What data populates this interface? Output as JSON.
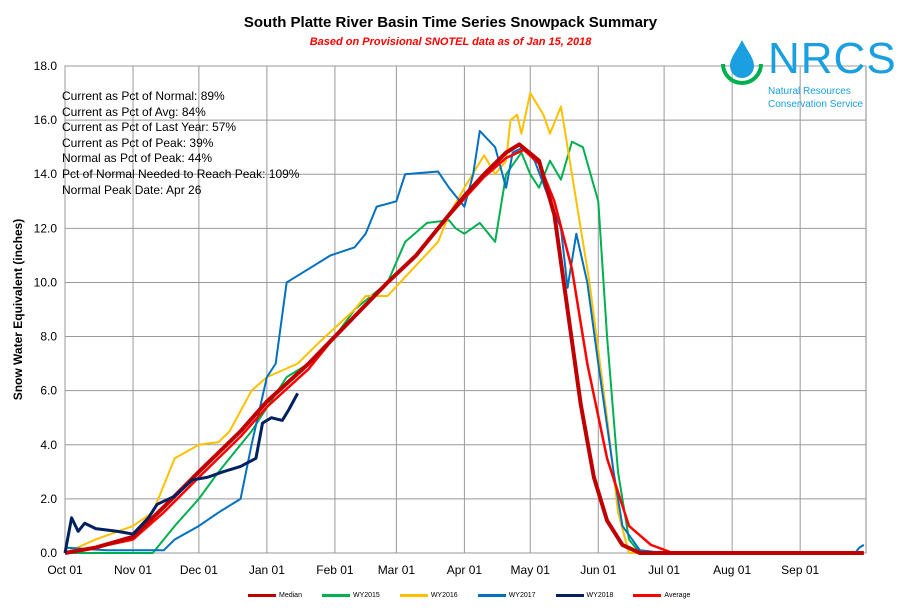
{
  "chart_data": {
    "type": "line",
    "title": "South Platte River Basin Time Series Snowpack Summary",
    "subtitle": "Based on Provisional SNOTEL data as of Jan 15, 2018",
    "ylabel": "Snow Water Equivalent (inches)",
    "xlabel": "",
    "ylim": [
      0,
      18
    ],
    "yticks": [
      "0.0",
      "2.0",
      "4.0",
      "6.0",
      "8.0",
      "10.0",
      "12.0",
      "14.0",
      "16.0",
      "18.0"
    ],
    "xticks": [
      "Oct 01",
      "Nov 01",
      "Dec 01",
      "Jan 01",
      "Feb 01",
      "Mar 01",
      "Apr 01",
      "May 01",
      "Jun 01",
      "Jul 01",
      "Aug 01",
      "Sep 01"
    ],
    "grid": true,
    "legend_position": "bottom",
    "stats": [
      "Current  as Pct of Normal: 89%",
      "Current  as Pct of Avg: 84%",
      "Current  as Pct of Last Year: 57%",
      "Current  as Pct of Peak: 39%",
      "Normal  as Pct of Peak: 44%",
      "Pct of Normal Needed  to Reach Peak: 109%",
      "Normal  Peak Date: Apr 26"
    ],
    "series": [
      {
        "name": "Median",
        "color": "#c00000",
        "width": 4,
        "points": [
          [
            "Oct 01",
            0
          ],
          [
            "Oct 15",
            0.2
          ],
          [
            "Nov 01",
            0.6
          ],
          [
            "Nov 15",
            1.7
          ],
          [
            "Dec 01",
            3
          ],
          [
            "Dec 20",
            4.5
          ],
          [
            "Jan 01",
            5.6
          ],
          [
            "Jan 20",
            7
          ],
          [
            "Feb 01",
            8
          ],
          [
            "Feb 25",
            10
          ],
          [
            "Mar 10",
            11
          ],
          [
            "Mar 20",
            12
          ],
          [
            "Apr 01",
            13.2
          ],
          [
            "Apr 10",
            14
          ],
          [
            "Apr 20",
            14.8
          ],
          [
            "Apr 26",
            15.1
          ],
          [
            "May 05",
            14.5
          ],
          [
            "May 12",
            12.5
          ],
          [
            "May 18",
            9
          ],
          [
            "May 24",
            5.5
          ],
          [
            "May 30",
            2.8
          ],
          [
            "Jun 05",
            1.2
          ],
          [
            "Jun 12",
            0.3
          ],
          [
            "Jun 20",
            0
          ],
          [
            "Sep 30",
            0
          ]
        ]
      },
      {
        "name": "WY2015",
        "color": "#00b050",
        "width": 2,
        "points": [
          [
            "Oct 01",
            0
          ],
          [
            "Nov 10",
            0
          ],
          [
            "Nov 20",
            1
          ],
          [
            "Dec 01",
            2
          ],
          [
            "Dec 10",
            3
          ],
          [
            "Dec 25",
            4.5
          ],
          [
            "Jan 10",
            6.5
          ],
          [
            "Jan 20",
            7
          ],
          [
            "Feb 01",
            8
          ],
          [
            "Feb 10",
            9
          ],
          [
            "Feb 25",
            10
          ],
          [
            "Mar 05",
            11.5
          ],
          [
            "Mar 15",
            12.2
          ],
          [
            "Mar 25",
            12.3
          ],
          [
            "Mar 28",
            12
          ],
          [
            "Apr 01",
            11.8
          ],
          [
            "Apr 08",
            12.2
          ],
          [
            "Apr 15",
            11.5
          ],
          [
            "Apr 20",
            14
          ],
          [
            "Apr 27",
            14.8
          ],
          [
            "May 01",
            14
          ],
          [
            "May 05",
            13.5
          ],
          [
            "May 10",
            14.5
          ],
          [
            "May 15",
            13.8
          ],
          [
            "May 20",
            15.2
          ],
          [
            "May 25",
            15
          ],
          [
            "Jun 01",
            13
          ],
          [
            "Jun 05",
            8
          ],
          [
            "Jun 10",
            3
          ],
          [
            "Jun 15",
            0.5
          ],
          [
            "Jun 20",
            0
          ],
          [
            "Sep 30",
            0
          ]
        ]
      },
      {
        "name": "WY2016",
        "color": "#ffc000",
        "width": 2,
        "points": [
          [
            "Oct 01",
            0
          ],
          [
            "Oct 15",
            0.5
          ],
          [
            "Nov 01",
            1
          ],
          [
            "Nov 10",
            1.5
          ],
          [
            "Nov 15",
            2.5
          ],
          [
            "Nov 20",
            3.5
          ],
          [
            "Dec 01",
            4
          ],
          [
            "Dec 10",
            4.1
          ],
          [
            "Dec 15",
            4.5
          ],
          [
            "Dec 25",
            6
          ],
          [
            "Jan 01",
            6.5
          ],
          [
            "Jan 15",
            7
          ],
          [
            "Jan 25",
            7.8
          ],
          [
            "Feb 10",
            9
          ],
          [
            "Feb 15",
            9.5
          ],
          [
            "Feb 25",
            9.5
          ],
          [
            "Mar 05",
            10.2
          ],
          [
            "Mar 20",
            11.5
          ],
          [
            "Mar 25",
            12.5
          ],
          [
            "Apr 01",
            13.5
          ],
          [
            "Apr 10",
            14.7
          ],
          [
            "Apr 15",
            14
          ],
          [
            "Apr 20",
            14.5
          ],
          [
            "Apr 22",
            16
          ],
          [
            "Apr 25",
            16.2
          ],
          [
            "Apr 27",
            15.5
          ],
          [
            "May 01",
            17
          ],
          [
            "May 07",
            16.2
          ],
          [
            "May 10",
            15.5
          ],
          [
            "May 15",
            16.5
          ],
          [
            "May 20",
            14
          ],
          [
            "May 28",
            10
          ],
          [
            "Jun 05",
            5
          ],
          [
            "Jun 10",
            1.5
          ],
          [
            "Jun 15",
            0
          ],
          [
            "Sep 30",
            0
          ]
        ]
      },
      {
        "name": "WY2017",
        "color": "#0070c0",
        "width": 2,
        "points": [
          [
            "Oct 01",
            0.2
          ],
          [
            "Oct 20",
            0.1
          ],
          [
            "Nov 15",
            0.1
          ],
          [
            "Nov 20",
            0.5
          ],
          [
            "Dec 01",
            1
          ],
          [
            "Dec 10",
            1.5
          ],
          [
            "Dec 20",
            2
          ],
          [
            "Dec 25",
            4
          ],
          [
            "Jan 01",
            6.5
          ],
          [
            "Jan 05",
            7
          ],
          [
            "Jan 10",
            10
          ],
          [
            "Jan 20",
            10.5
          ],
          [
            "Jan 30",
            11
          ],
          [
            "Feb 10",
            11.3
          ],
          [
            "Feb 15",
            11.8
          ],
          [
            "Feb 20",
            12.8
          ],
          [
            "Mar 01",
            13
          ],
          [
            "Mar 05",
            14
          ],
          [
            "Mar 20",
            14.1
          ],
          [
            "Mar 25",
            13.5
          ],
          [
            "Apr 01",
            12.8
          ],
          [
            "Apr 05",
            14
          ],
          [
            "Apr 08",
            15.6
          ],
          [
            "Apr 15",
            15
          ],
          [
            "Apr 20",
            13.5
          ],
          [
            "Apr 23",
            14.8
          ],
          [
            "Apr 28",
            15
          ],
          [
            "May 03",
            14.5
          ],
          [
            "May 10",
            13
          ],
          [
            "May 15",
            12
          ],
          [
            "May 18",
            9.8
          ],
          [
            "May 22",
            11.8
          ],
          [
            "May 27",
            10
          ],
          [
            "Jun 01",
            7
          ],
          [
            "Jun 08",
            3
          ],
          [
            "Jun 12",
            1
          ],
          [
            "Jun 20",
            0.1
          ],
          [
            "Jul 01",
            0
          ],
          [
            "Sep 26",
            0
          ],
          [
            "Sep 28",
            0.2
          ],
          [
            "Sep 30",
            0.3
          ]
        ]
      },
      {
        "name": "WY2018",
        "color": "#002060",
        "width": 3,
        "points": [
          [
            "Oct 01",
            0
          ],
          [
            "Oct 04",
            1.3
          ],
          [
            "Oct 07",
            0.8
          ],
          [
            "Oct 10",
            1.1
          ],
          [
            "Oct 15",
            0.9
          ],
          [
            "Oct 25",
            0.8
          ],
          [
            "Nov 01",
            0.7
          ],
          [
            "Nov 08",
            1.3
          ],
          [
            "Nov 12",
            1.8
          ],
          [
            "Nov 20",
            2.1
          ],
          [
            "Nov 28",
            2.7
          ],
          [
            "Dec 05",
            2.8
          ],
          [
            "Dec 12",
            3
          ],
          [
            "Dec 20",
            3.2
          ],
          [
            "Dec 27",
            3.5
          ],
          [
            "Dec 30",
            4.8
          ],
          [
            "Jan 03",
            5
          ],
          [
            "Jan 08",
            4.9
          ],
          [
            "Jan 11",
            5.3
          ],
          [
            "Jan 15",
            5.9
          ]
        ]
      },
      {
        "name": "Average",
        "color": "#ff0000",
        "width": 2.5,
        "points": [
          [
            "Oct 01",
            0
          ],
          [
            "Oct 15",
            0.2
          ],
          [
            "Nov 01",
            0.5
          ],
          [
            "Nov 15",
            1.5
          ],
          [
            "Dec 01",
            2.8
          ],
          [
            "Dec 20",
            4.3
          ],
          [
            "Jan 01",
            5.4
          ],
          [
            "Jan 20",
            6.8
          ],
          [
            "Feb 01",
            8
          ],
          [
            "Feb 25",
            10
          ],
          [
            "Mar 10",
            11
          ],
          [
            "Mar 20",
            12
          ],
          [
            "Apr 01",
            13.1
          ],
          [
            "Apr 10",
            13.9
          ],
          [
            "Apr 20",
            14.6
          ],
          [
            "Apr 28",
            14.9
          ],
          [
            "May 05",
            14.4
          ],
          [
            "May 12",
            13
          ],
          [
            "May 20",
            10.5
          ],
          [
            "May 27",
            7
          ],
          [
            "Jun 05",
            3.5
          ],
          [
            "Jun 15",
            1
          ],
          [
            "Jun 25",
            0.3
          ],
          [
            "Jul 05",
            0
          ],
          [
            "Sep 30",
            0
          ]
        ]
      }
    ]
  },
  "logo": {
    "text": "NRCS",
    "org_line1": "Natural Resources",
    "org_line2": "Conservation Service"
  }
}
